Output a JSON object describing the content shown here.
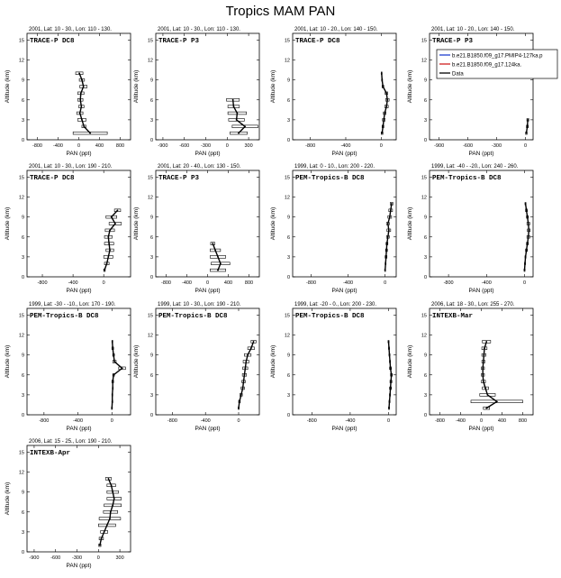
{
  "title": "Tropics MAM PAN",
  "ylabel": "Altitude (km)",
  "xlabel": "PAN (ppt)",
  "legend": {
    "entries": [
      {
        "label": "b.e21.B1850.f09_g17.PMIP4-127ka.p",
        "color": "#1f3fd0"
      },
      {
        "label": "b.e21.B1850.f09_g17.124ka.",
        "color": "#d02020"
      },
      {
        "label": "Data",
        "color": "#000000"
      }
    ]
  },
  "chart_data": [
    {
      "type": "line",
      "header": "2001, Lat: 10 - 30., Lon: 110 - 130.",
      "campaign": "TRACE-P DC8",
      "xticks": [
        "-800",
        "-400",
        "0",
        "400",
        "800"
      ],
      "xlim": [
        -1000,
        1000
      ],
      "yticks": [
        "0",
        "3",
        "6",
        "9",
        "12",
        "15"
      ],
      "ylim": [
        0,
        16
      ],
      "y": [
        1,
        2,
        3,
        4,
        5,
        6,
        7,
        8,
        9,
        10
      ],
      "x": [
        220,
        100,
        60,
        20,
        50,
        30,
        40,
        90,
        60,
        10
      ],
      "err": [
        330,
        40,
        80,
        60,
        50,
        50,
        60,
        70,
        50,
        70
      ]
    },
    {
      "type": "line",
      "header": "2001, Lat: 10 - 30., Lon: 110 - 130.",
      "campaign": "TRACE-P P3",
      "xticks": [
        "-900",
        "-600",
        "-300",
        "0",
        "300"
      ],
      "xlim": [
        -1000,
        450
      ],
      "yticks": [
        "0",
        "3",
        "6",
        "9",
        "12",
        "15"
      ],
      "ylim": [
        0,
        16
      ],
      "y": [
        1,
        2,
        3,
        4,
        5,
        6
      ],
      "x": [
        160,
        250,
        130,
        140,
        90,
        80
      ],
      "err": [
        120,
        180,
        110,
        130,
        80,
        90
      ]
    },
    {
      "type": "line",
      "header": "2001, Lat: 10 - 20., Lon: 140 - 150.",
      "campaign": "TRACE-P DC8",
      "xticks": [
        "-800",
        "-400",
        "0"
      ],
      "xlim": [
        -1000,
        170
      ],
      "yticks": [
        "0",
        "3",
        "6",
        "9",
        "12",
        "15"
      ],
      "ylim": [
        0,
        16
      ],
      "y": [
        1,
        2,
        3,
        4,
        5,
        6,
        7,
        8,
        9,
        10
      ],
      "x": [
        10,
        20,
        30,
        40,
        60,
        70,
        60,
        20,
        10,
        5
      ],
      "err": [
        10,
        10,
        15,
        15,
        20,
        20,
        15,
        10,
        5,
        5
      ]
    },
    {
      "type": "line",
      "header": "2001, Lat: 10 - 20., Lon: 140 - 150.",
      "campaign": "TRACE-P P3",
      "xticks": [
        "-900",
        "-600",
        "-300",
        "0"
      ],
      "xlim": [
        -1000,
        80
      ],
      "yticks": [
        "0",
        "3",
        "6",
        "9",
        "12",
        "15"
      ],
      "ylim": [
        0,
        16
      ],
      "y": [
        1,
        2,
        3
      ],
      "x": [
        10,
        20,
        25
      ],
      "err": [
        8,
        10,
        10
      ]
    },
    {
      "type": "line",
      "header": "2001, Lat: 10 - 30., Lon: 190 - 210.",
      "campaign": "TRACE-P DC8",
      "xticks": [
        "-800",
        "-400",
        "0"
      ],
      "xlim": [
        -1000,
        350
      ],
      "yticks": [
        "0",
        "3",
        "6",
        "9",
        "12",
        "15"
      ],
      "ylim": [
        0,
        16
      ],
      "y": [
        1,
        2,
        3,
        4,
        5,
        6,
        7,
        8,
        9,
        10
      ],
      "x": [
        10,
        40,
        60,
        80,
        70,
        60,
        80,
        150,
        100,
        180
      ],
      "err": [
        10,
        30,
        60,
        50,
        60,
        50,
        60,
        80,
        70,
        40
      ]
    },
    {
      "type": "line",
      "header": "2001, Lat: 20 - 40., Lon: 130 - 150.",
      "campaign": "TRACE-P P3",
      "xticks": [
        "-800",
        "-400",
        "0",
        "400",
        "800"
      ],
      "xlim": [
        -1000,
        1000
      ],
      "yticks": [
        "0",
        "3",
        "6",
        "9",
        "12",
        "15"
      ],
      "ylim": [
        0,
        16
      ],
      "y": [
        1,
        2,
        3,
        4,
        5
      ],
      "x": [
        200,
        250,
        200,
        150,
        100
      ],
      "err": [
        150,
        180,
        150,
        100,
        40
      ]
    },
    {
      "type": "line",
      "header": "1999, Lat: 0 - 10., Lon: 200 - 220.",
      "campaign": "PEM-Tropics-B DC8",
      "xticks": [
        "-800",
        "-400",
        "0"
      ],
      "xlim": [
        -1000,
        120
      ],
      "yticks": [
        "0",
        "3",
        "6",
        "9",
        "12",
        "15"
      ],
      "ylim": [
        0,
        16
      ],
      "y": [
        1,
        2,
        3,
        4,
        5,
        6,
        7,
        8,
        9,
        10,
        11
      ],
      "x": [
        0,
        5,
        10,
        15,
        20,
        30,
        40,
        30,
        50,
        60,
        70
      ],
      "err": [
        5,
        5,
        10,
        10,
        10,
        15,
        20,
        15,
        20,
        20,
        15
      ]
    },
    {
      "type": "line",
      "header": "1999, Lat: -40 - -20., Lon: 240 - 260.",
      "campaign": "PEM-Tropics-B DC8",
      "xticks": [
        "-800",
        "-400",
        "0"
      ],
      "xlim": [
        -1000,
        90
      ],
      "yticks": [
        "0",
        "3",
        "6",
        "9",
        "12",
        "15"
      ],
      "ylim": [
        0,
        16
      ],
      "y": [
        1,
        2,
        3,
        4,
        5,
        6,
        7,
        8,
        9,
        10,
        11
      ],
      "x": [
        0,
        5,
        10,
        20,
        30,
        40,
        45,
        40,
        30,
        20,
        10
      ],
      "err": [
        5,
        5,
        5,
        10,
        10,
        15,
        15,
        15,
        10,
        10,
        5
      ]
    },
    {
      "type": "line",
      "header": "1999, Lat: -30 - -10., Lon: 170 - 190.",
      "campaign": "PEM-Tropics-B DC8",
      "xticks": [
        "-800",
        "-400",
        "0"
      ],
      "xlim": [
        -1000,
        220
      ],
      "yticks": [
        "0",
        "3",
        "6",
        "9",
        "12",
        "15"
      ],
      "ylim": [
        0,
        16
      ],
      "y": [
        1,
        2,
        3,
        4,
        5,
        6,
        7,
        8,
        9,
        10,
        11
      ],
      "x": [
        0,
        5,
        5,
        10,
        10,
        20,
        120,
        30,
        20,
        10,
        5
      ],
      "err": [
        5,
        5,
        5,
        5,
        10,
        10,
        40,
        20,
        10,
        10,
        5
      ]
    },
    {
      "type": "line",
      "header": "1999, Lat: 10 - 30., Lon: 190 - 210.",
      "campaign": "PEM-Tropics-B DC8",
      "xticks": [
        "-800",
        "-400",
        "0"
      ],
      "xlim": [
        -1000,
        250
      ],
      "yticks": [
        "0",
        "3",
        "6",
        "9",
        "12",
        "15"
      ],
      "ylim": [
        0,
        16
      ],
      "y": [
        1,
        2,
        3,
        4,
        5,
        6,
        7,
        8,
        9,
        10,
        11
      ],
      "x": [
        0,
        10,
        30,
        50,
        60,
        70,
        80,
        90,
        110,
        150,
        180
      ],
      "err": [
        5,
        10,
        15,
        20,
        20,
        25,
        30,
        35,
        40,
        40,
        30
      ]
    },
    {
      "type": "line",
      "header": "1999, Lat: -20 - 0., Lon: 200 - 230.",
      "campaign": "PEM-Tropics-B DC8",
      "xticks": [
        "-800",
        "-400",
        "0"
      ],
      "xlim": [
        -1000,
        80
      ],
      "yticks": [
        "0",
        "3",
        "6",
        "9",
        "12",
        "15"
      ],
      "ylim": [
        0,
        16
      ],
      "y": [
        1,
        2,
        3,
        4,
        5,
        6,
        7,
        8,
        9,
        10,
        11
      ],
      "x": [
        5,
        10,
        15,
        20,
        25,
        30,
        20,
        15,
        10,
        5,
        0
      ],
      "err": [
        5,
        5,
        5,
        10,
        10,
        10,
        10,
        5,
        5,
        5,
        5
      ]
    },
    {
      "type": "line",
      "header": "2006, Lat: 18 - 30., Lon: 255 - 270.",
      "campaign": "INTEXB-Mar",
      "xticks": [
        "-800",
        "-400",
        "0",
        "400",
        "800"
      ],
      "xlim": [
        -1000,
        1000
      ],
      "yticks": [
        "0",
        "3",
        "6",
        "9",
        "12",
        "15"
      ],
      "ylim": [
        0,
        16
      ],
      "y": [
        1,
        2,
        3,
        4,
        5,
        6,
        7,
        8,
        9,
        10,
        11
      ],
      "x": [
        100,
        300,
        120,
        80,
        40,
        30,
        30,
        40,
        50,
        60,
        100
      ],
      "err": [
        60,
        500,
        150,
        60,
        40,
        30,
        30,
        30,
        40,
        50,
        80
      ]
    },
    {
      "type": "line",
      "header": "2006, Lat: 15 - 25., Lon: 190 - 210.",
      "campaign": "INTEXB-Apr",
      "xticks": [
        "-900",
        "-600",
        "-300",
        "0",
        "300"
      ],
      "xlim": [
        -1000,
        450
      ],
      "yticks": [
        "0",
        "3",
        "6",
        "9",
        "12",
        "15"
      ],
      "ylim": [
        0,
        16
      ],
      "y": [
        1,
        2,
        3,
        4,
        5,
        6,
        7,
        8,
        9,
        10,
        11
      ],
      "x": [
        20,
        40,
        80,
        120,
        160,
        170,
        200,
        220,
        200,
        180,
        140
      ],
      "err": [
        15,
        30,
        50,
        120,
        150,
        100,
        120,
        100,
        80,
        60,
        40
      ]
    }
  ]
}
